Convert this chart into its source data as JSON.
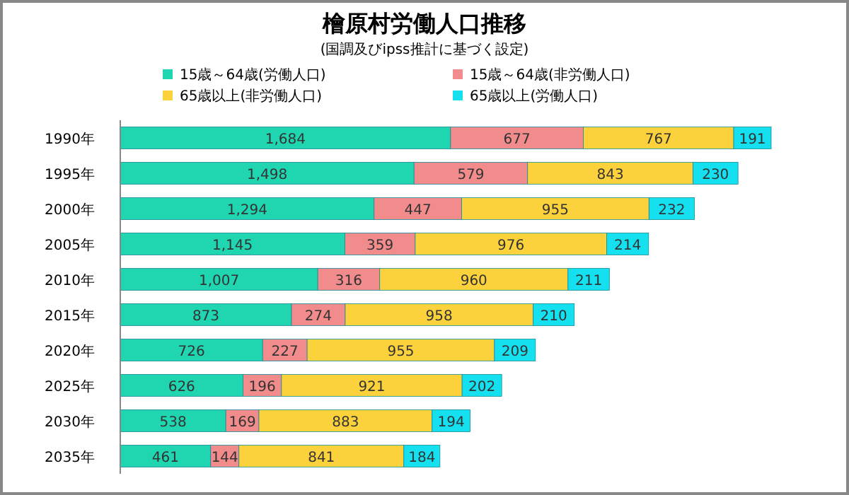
{
  "chart_data": {
    "type": "bar",
    "orientation": "horizontal",
    "stacked": true,
    "legend": "top",
    "grid": false,
    "title": "檜原村労働人口推移",
    "subtitle": "(国調及びipss推計に基づく設定)",
    "categories": [
      "1990年",
      "1995年",
      "2000年",
      "2005年",
      "2010年",
      "2015年",
      "2020年",
      "2025年",
      "2030年",
      "2035年"
    ],
    "series": [
      {
        "name": "15歳～64歳(労働人口)",
        "color": "#1fd6b0",
        "values": [
          1684,
          1498,
          1294,
          1145,
          1007,
          873,
          726,
          626,
          538,
          461
        ],
        "value_labels": [
          "1,684",
          "1,498",
          "1,294",
          "1,145",
          "1,007",
          "873",
          "726",
          "626",
          "538",
          "461"
        ]
      },
      {
        "name": "15歳～64歳(非労働人口)",
        "color": "#f28b8b",
        "values": [
          677,
          579,
          447,
          359,
          316,
          274,
          227,
          196,
          169,
          144
        ],
        "value_labels": [
          "677",
          "579",
          "447",
          "359",
          "316",
          "274",
          "227",
          "196",
          "169",
          "144"
        ]
      },
      {
        "name": "65歳以上(非労働人口)",
        "color": "#fcd23c",
        "values": [
          767,
          843,
          955,
          976,
          960,
          958,
          955,
          921,
          883,
          841
        ],
        "value_labels": [
          "767",
          "843",
          "955",
          "976",
          "960",
          "958",
          "955",
          "921",
          "883",
          "841"
        ]
      },
      {
        "name": "65歳以上(労働人口)",
        "color": "#14e0f0",
        "values": [
          191,
          230,
          232,
          214,
          211,
          210,
          209,
          202,
          194,
          184
        ],
        "value_labels": [
          "191",
          "230",
          "232",
          "214",
          "211",
          "210",
          "209",
          "202",
          "194",
          "184"
        ]
      }
    ]
  }
}
